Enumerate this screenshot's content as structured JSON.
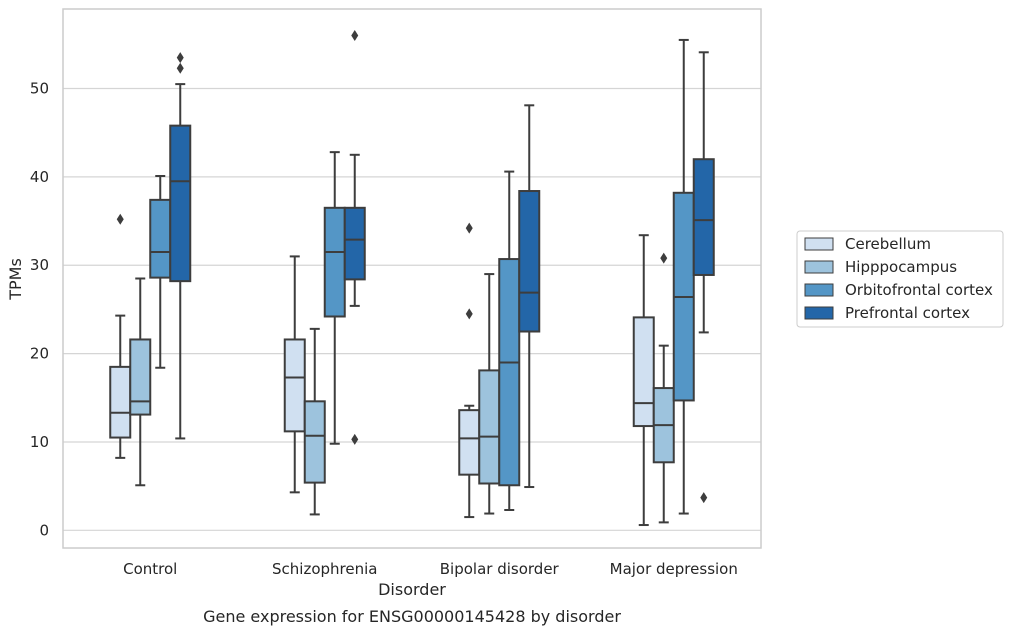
{
  "chart_data": {
    "type": "boxplot",
    "xlabel": "Disorder",
    "ylabel": "TPMs",
    "caption": "Gene expression for ENSG00000145428 by disorder",
    "ylim": [
      -2,
      59
    ],
    "yticks": [
      0,
      10,
      20,
      30,
      40,
      50
    ],
    "grid": "horizontal",
    "legend_position": "right",
    "categories": [
      "Control",
      "Schizophrenia",
      "Bipolar disorder",
      "Major depression"
    ],
    "series": [
      {
        "name": "Cerebellum",
        "color": "#d0e0f1",
        "boxes": [
          {
            "whislo": 8.2,
            "q1": 10.5,
            "med": 13.3,
            "q3": 18.5,
            "whishi": 24.3,
            "fliers": [
              35.2
            ]
          },
          {
            "whislo": 4.3,
            "q1": 11.2,
            "med": 17.3,
            "q3": 21.6,
            "whishi": 31.0,
            "fliers": []
          },
          {
            "whislo": 1.5,
            "q1": 6.3,
            "med": 10.4,
            "q3": 13.6,
            "whishi": 14.1,
            "fliers": [
              34.2,
              24.5
            ]
          },
          {
            "whislo": 0.6,
            "q1": 11.8,
            "med": 14.4,
            "q3": 24.1,
            "whishi": 33.4,
            "fliers": []
          }
        ]
      },
      {
        "name": "Hipppocampus",
        "color": "#9dc3dd",
        "boxes": [
          {
            "whislo": 5.1,
            "q1": 13.1,
            "med": 14.6,
            "q3": 21.6,
            "whishi": 28.5,
            "fliers": []
          },
          {
            "whislo": 1.8,
            "q1": 5.4,
            "med": 10.7,
            "q3": 14.6,
            "whishi": 22.8,
            "fliers": []
          },
          {
            "whislo": 1.9,
            "q1": 5.3,
            "med": 10.6,
            "q3": 18.1,
            "whishi": 29.0,
            "fliers": []
          },
          {
            "whislo": 0.9,
            "q1": 7.7,
            "med": 11.9,
            "q3": 16.1,
            "whishi": 20.9,
            "fliers": [
              30.8
            ]
          }
        ]
      },
      {
        "name": "Orbitofrontal cortex",
        "color": "#5496c6",
        "boxes": [
          {
            "whislo": 18.4,
            "q1": 28.6,
            "med": 31.5,
            "q3": 37.4,
            "whishi": 40.1,
            "fliers": []
          },
          {
            "whislo": 9.8,
            "q1": 24.2,
            "med": 31.5,
            "q3": 36.5,
            "whishi": 42.8,
            "fliers": []
          },
          {
            "whislo": 2.3,
            "q1": 5.1,
            "med": 19.0,
            "q3": 30.7,
            "whishi": 40.6,
            "fliers": []
          },
          {
            "whislo": 1.9,
            "q1": 14.7,
            "med": 26.4,
            "q3": 38.2,
            "whishi": 55.5,
            "fliers": []
          }
        ]
      },
      {
        "name": "Prefrontal cortex",
        "color": "#2366a8",
        "boxes": [
          {
            "whislo": 10.4,
            "q1": 28.2,
            "med": 39.5,
            "q3": 45.8,
            "whishi": 50.5,
            "fliers": [
              53.5,
              52.3
            ]
          },
          {
            "whislo": 25.4,
            "q1": 28.4,
            "med": 32.9,
            "q3": 36.5,
            "whishi": 42.5,
            "fliers": [
              56.0,
              10.3
            ]
          },
          {
            "whislo": 4.9,
            "q1": 22.5,
            "med": 26.9,
            "q3": 38.4,
            "whishi": 48.1,
            "fliers": []
          },
          {
            "whislo": 22.4,
            "q1": 28.9,
            "med": 35.1,
            "q3": 42.0,
            "whishi": 54.1,
            "fliers": [
              3.7
            ]
          }
        ]
      }
    ]
  }
}
